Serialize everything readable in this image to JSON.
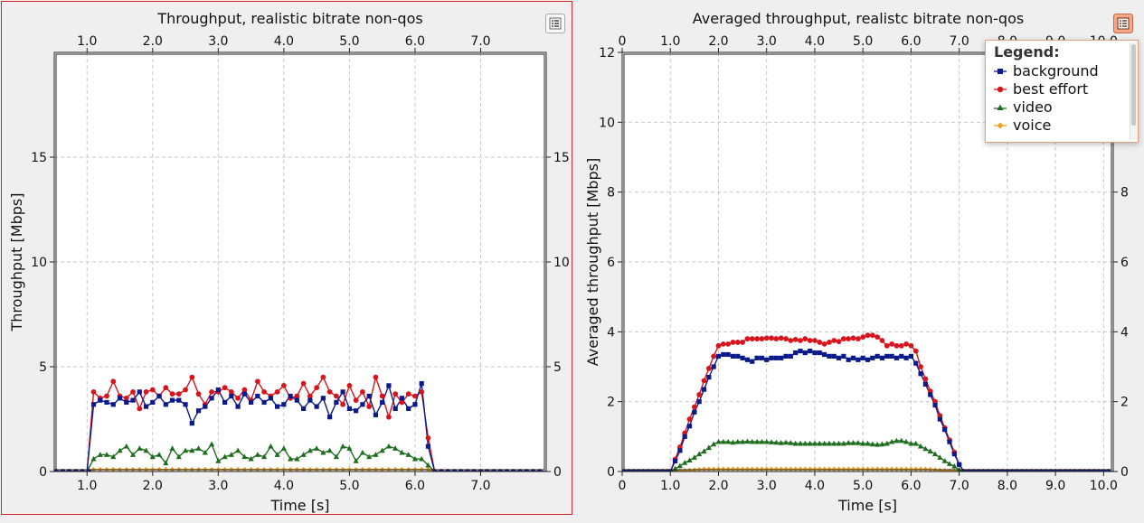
{
  "chart_data": [
    {
      "type": "line",
      "title": "Throughput, realistic bitrate non-qos",
      "xlabel": "Time [s]",
      "ylabel": "Throughput [Mbps]",
      "xlim": [
        0.5,
        8.0
      ],
      "ylim": [
        0,
        20
      ],
      "xticks": [
        1.0,
        2.0,
        3.0,
        4.0,
        5.0,
        6.0,
        7.0
      ],
      "xtick_labels": [
        "1.0",
        "2.0",
        "3.0",
        "4.0",
        "5.0",
        "6.0",
        "7.0"
      ],
      "yticks": [
        0,
        5,
        10,
        15
      ],
      "ytick_labels": [
        "0",
        "5",
        "10",
        "15"
      ],
      "top_axis": true,
      "right_axis": true,
      "grid": true,
      "legend": "hidden",
      "series": [
        {
          "name": "background",
          "color": "#0b1a8a",
          "marker": "square",
          "x": [
            1.1,
            1.2,
            1.3,
            1.4,
            1.5,
            1.6,
            1.7,
            1.8,
            1.9,
            2.0,
            2.1,
            2.2,
            2.3,
            2.4,
            2.5,
            2.6,
            2.7,
            2.8,
            2.9,
            3.0,
            3.1,
            3.2,
            3.3,
            3.4,
            3.5,
            3.6,
            3.7,
            3.8,
            3.9,
            4.0,
            4.1,
            4.2,
            4.3,
            4.4,
            4.5,
            4.6,
            4.7,
            4.8,
            4.9,
            5.0,
            5.1,
            5.2,
            5.3,
            5.4,
            5.5,
            5.6,
            5.7,
            5.8,
            5.9,
            6.0,
            6.1,
            6.2
          ],
          "y": [
            3.2,
            3.4,
            3.3,
            3.2,
            3.5,
            3.3,
            3.4,
            3.8,
            3.1,
            3.3,
            3.6,
            3.2,
            3.4,
            3.4,
            3.2,
            2.3,
            2.9,
            3.1,
            3.5,
            3.9,
            3.3,
            3.6,
            3.1,
            3.7,
            3.3,
            3.6,
            3.3,
            3.5,
            3.1,
            3.2,
            3.6,
            3.4,
            3.0,
            3.4,
            3.1,
            3.5,
            2.6,
            3.3,
            3.8,
            3.0,
            2.9,
            3.2,
            3.6,
            2.7,
            3.3,
            4.1,
            3.0,
            3.5,
            3.0,
            3.2,
            4.2,
            1.2
          ]
        },
        {
          "name": "best effort",
          "color": "#d8141c",
          "marker": "circle",
          "x": [
            1.1,
            1.2,
            1.3,
            1.4,
            1.5,
            1.6,
            1.7,
            1.8,
            1.9,
            2.0,
            2.1,
            2.2,
            2.3,
            2.4,
            2.5,
            2.6,
            2.7,
            2.8,
            2.9,
            3.0,
            3.1,
            3.2,
            3.3,
            3.4,
            3.5,
            3.6,
            3.7,
            3.8,
            3.9,
            4.0,
            4.1,
            4.2,
            4.3,
            4.4,
            4.5,
            4.6,
            4.7,
            4.8,
            4.9,
            5.0,
            5.1,
            5.2,
            5.3,
            5.4,
            5.5,
            5.6,
            5.7,
            5.8,
            5.9,
            6.0,
            6.1,
            6.2
          ],
          "y": [
            3.8,
            3.5,
            3.6,
            4.3,
            3.6,
            3.5,
            3.8,
            3.0,
            3.8,
            3.9,
            3.6,
            4.0,
            3.7,
            3.7,
            3.9,
            4.5,
            3.7,
            3.2,
            3.8,
            3.8,
            4.0,
            3.8,
            3.5,
            3.9,
            3.4,
            4.3,
            3.8,
            3.6,
            3.8,
            4.1,
            3.5,
            3.6,
            4.2,
            3.6,
            4.0,
            4.5,
            3.8,
            3.6,
            3.2,
            4.1,
            3.4,
            3.8,
            3.1,
            4.5,
            3.6,
            2.6,
            3.7,
            3.3,
            3.7,
            3.6,
            3.8,
            1.6
          ]
        },
        {
          "name": "video",
          "color": "#1e6e1e",
          "marker": "triangle",
          "x": [
            1.1,
            1.2,
            1.3,
            1.4,
            1.5,
            1.6,
            1.7,
            1.8,
            1.9,
            2.0,
            2.1,
            2.2,
            2.3,
            2.4,
            2.5,
            2.6,
            2.7,
            2.8,
            2.9,
            3.0,
            3.1,
            3.2,
            3.3,
            3.4,
            3.5,
            3.6,
            3.7,
            3.8,
            3.9,
            4.0,
            4.1,
            4.2,
            4.3,
            4.4,
            4.5,
            4.6,
            4.7,
            4.8,
            4.9,
            5.0,
            5.1,
            5.2,
            5.3,
            5.4,
            5.5,
            5.6,
            5.7,
            5.8,
            5.9,
            6.0,
            6.1,
            6.2
          ],
          "y": [
            0.6,
            0.8,
            0.8,
            0.7,
            1.0,
            1.2,
            0.8,
            1.1,
            1.0,
            0.7,
            0.8,
            0.4,
            1.1,
            0.7,
            1.0,
            1.0,
            1.1,
            0.9,
            1.3,
            0.5,
            0.7,
            0.8,
            1.0,
            0.7,
            0.6,
            0.8,
            0.7,
            1.2,
            0.8,
            1.1,
            0.6,
            0.6,
            0.8,
            1.0,
            1.1,
            0.9,
            1.0,
            0.7,
            1.2,
            1.1,
            0.5,
            0.9,
            0.7,
            0.8,
            1.0,
            1.2,
            1.1,
            0.9,
            0.8,
            0.6,
            0.6,
            0.3
          ]
        },
        {
          "name": "voice",
          "color": "#f0a020",
          "marker": "diamond",
          "x": [
            1.1,
            1.2,
            1.3,
            1.4,
            1.5,
            1.6,
            1.7,
            1.8,
            1.9,
            2.0,
            2.1,
            2.2,
            2.3,
            2.4,
            2.5,
            2.6,
            2.7,
            2.8,
            2.9,
            3.0,
            3.1,
            3.2,
            3.3,
            3.4,
            3.5,
            3.6,
            3.7,
            3.8,
            3.9,
            4.0,
            4.1,
            4.2,
            4.3,
            4.4,
            4.5,
            4.6,
            4.7,
            4.8,
            4.9,
            5.0,
            5.1,
            5.2,
            5.3,
            5.4,
            5.5,
            5.6,
            5.7,
            5.8,
            5.9,
            6.0,
            6.1,
            6.2
          ],
          "y": [
            0.1,
            0.1,
            0.1,
            0.1,
            0.1,
            0.1,
            0.1,
            0.1,
            0.1,
            0.1,
            0.1,
            0.1,
            0.1,
            0.1,
            0.1,
            0.1,
            0.1,
            0.1,
            0.1,
            0.1,
            0.1,
            0.1,
            0.1,
            0.1,
            0.1,
            0.1,
            0.1,
            0.1,
            0.1,
            0.1,
            0.1,
            0.1,
            0.1,
            0.1,
            0.1,
            0.1,
            0.1,
            0.1,
            0.1,
            0.1,
            0.1,
            0.1,
            0.1,
            0.1,
            0.1,
            0.1,
            0.1,
            0.1,
            0.1,
            0.1,
            0.1,
            0.1
          ]
        }
      ]
    },
    {
      "type": "line",
      "title": "Averaged throughput, realistc bitrate non-qos",
      "xlabel": "Time [s]",
      "ylabel": "Averaged throughput [Mbps]",
      "xlim": [
        0,
        10.2
      ],
      "ylim": [
        0,
        12
      ],
      "xticks": [
        0,
        1.0,
        2.0,
        3.0,
        4.0,
        5.0,
        6.0,
        7.0,
        8.0,
        9.0,
        10.0
      ],
      "xtick_labels": [
        "0",
        "1.0",
        "2.0",
        "3.0",
        "4.0",
        "5.0",
        "6.0",
        "7.0",
        "8.0",
        "9.0",
        "10.0"
      ],
      "yticks": [
        0,
        2,
        4,
        6,
        8,
        10,
        12
      ],
      "ytick_labels": [
        "0",
        "2",
        "4",
        "6",
        "8",
        "10",
        "12"
      ],
      "top_axis": true,
      "right_axis": true,
      "grid": true,
      "legend": "top-right",
      "series": [
        {
          "name": "background",
          "color": "#0b1a8a",
          "marker": "square",
          "x": [
            1.0,
            1.1,
            1.2,
            1.3,
            1.4,
            1.5,
            1.6,
            1.7,
            1.8,
            1.9,
            2.0,
            2.1,
            2.2,
            2.3,
            2.4,
            2.5,
            2.6,
            2.7,
            2.8,
            2.9,
            3.0,
            3.1,
            3.2,
            3.3,
            3.4,
            3.5,
            3.6,
            3.7,
            3.8,
            3.9,
            4.0,
            4.1,
            4.2,
            4.3,
            4.4,
            4.5,
            4.6,
            4.7,
            4.8,
            4.9,
            5.0,
            5.1,
            5.2,
            5.3,
            5.4,
            5.5,
            5.6,
            5.7,
            5.8,
            5.9,
            6.0,
            6.1,
            6.2,
            6.3,
            6.4,
            6.5,
            6.6,
            6.7,
            6.8,
            6.9,
            7.0,
            7.1
          ],
          "y": [
            0.0,
            0.3,
            0.6,
            1.0,
            1.3,
            1.7,
            2.0,
            2.35,
            2.7,
            3.0,
            3.3,
            3.35,
            3.35,
            3.3,
            3.3,
            3.25,
            3.2,
            3.15,
            3.25,
            3.25,
            3.2,
            3.25,
            3.25,
            3.25,
            3.3,
            3.3,
            3.4,
            3.45,
            3.4,
            3.45,
            3.4,
            3.4,
            3.35,
            3.3,
            3.3,
            3.25,
            3.3,
            3.2,
            3.25,
            3.2,
            3.25,
            3.2,
            3.25,
            3.3,
            3.25,
            3.3,
            3.3,
            3.25,
            3.3,
            3.25,
            3.3,
            3.1,
            2.8,
            2.5,
            2.2,
            1.9,
            1.5,
            1.2,
            0.85,
            0.5,
            0.2,
            0.0
          ]
        },
        {
          "name": "best effort",
          "color": "#d8141c",
          "marker": "circle",
          "x": [
            1.0,
            1.1,
            1.2,
            1.3,
            1.4,
            1.5,
            1.6,
            1.7,
            1.8,
            1.9,
            2.0,
            2.1,
            2.2,
            2.3,
            2.4,
            2.5,
            2.6,
            2.7,
            2.8,
            2.9,
            3.0,
            3.1,
            3.2,
            3.3,
            3.4,
            3.5,
            3.6,
            3.7,
            3.8,
            3.9,
            4.0,
            4.1,
            4.2,
            4.3,
            4.4,
            4.5,
            4.6,
            4.7,
            4.8,
            4.9,
            5.0,
            5.1,
            5.2,
            5.3,
            5.4,
            5.5,
            5.6,
            5.7,
            5.8,
            5.9,
            6.0,
            6.1,
            6.2,
            6.3,
            6.4,
            6.5,
            6.6,
            6.7,
            6.8,
            6.9,
            7.0,
            7.1
          ],
          "y": [
            0.0,
            0.35,
            0.7,
            1.1,
            1.5,
            1.85,
            2.2,
            2.6,
            2.95,
            3.3,
            3.6,
            3.65,
            3.65,
            3.7,
            3.7,
            3.7,
            3.8,
            3.8,
            3.8,
            3.8,
            3.82,
            3.82,
            3.8,
            3.82,
            3.8,
            3.75,
            3.78,
            3.75,
            3.8,
            3.75,
            3.75,
            3.7,
            3.65,
            3.7,
            3.75,
            3.72,
            3.8,
            3.8,
            3.82,
            3.8,
            3.85,
            3.9,
            3.9,
            3.85,
            3.75,
            3.6,
            3.65,
            3.6,
            3.6,
            3.65,
            3.6,
            3.45,
            3.0,
            2.65,
            2.3,
            2.0,
            1.6,
            1.25,
            0.9,
            0.55,
            0.2,
            0.0
          ]
        },
        {
          "name": "video",
          "color": "#1e6e1e",
          "marker": "triangle",
          "x": [
            1.0,
            1.1,
            1.2,
            1.3,
            1.4,
            1.5,
            1.6,
            1.7,
            1.8,
            1.9,
            2.0,
            2.1,
            2.2,
            2.3,
            2.4,
            2.5,
            2.6,
            2.7,
            2.8,
            2.9,
            3.0,
            3.1,
            3.2,
            3.3,
            3.4,
            3.5,
            3.6,
            3.7,
            3.8,
            3.9,
            4.0,
            4.1,
            4.2,
            4.3,
            4.4,
            4.5,
            4.6,
            4.7,
            4.8,
            4.9,
            5.0,
            5.1,
            5.2,
            5.3,
            5.4,
            5.5,
            5.6,
            5.7,
            5.8,
            5.9,
            6.0,
            6.1,
            6.2,
            6.3,
            6.4,
            6.5,
            6.6,
            6.7,
            6.8,
            6.9,
            7.0,
            7.1
          ],
          "y": [
            0.0,
            0.08,
            0.16,
            0.25,
            0.32,
            0.4,
            0.5,
            0.58,
            0.68,
            0.78,
            0.85,
            0.85,
            0.85,
            0.83,
            0.85,
            0.85,
            0.86,
            0.85,
            0.85,
            0.85,
            0.85,
            0.84,
            0.83,
            0.82,
            0.83,
            0.82,
            0.8,
            0.8,
            0.8,
            0.8,
            0.8,
            0.8,
            0.8,
            0.8,
            0.8,
            0.8,
            0.8,
            0.82,
            0.82,
            0.82,
            0.8,
            0.8,
            0.78,
            0.77,
            0.78,
            0.8,
            0.85,
            0.88,
            0.88,
            0.85,
            0.8,
            0.8,
            0.72,
            0.65,
            0.58,
            0.5,
            0.4,
            0.3,
            0.22,
            0.15,
            0.05,
            0.0
          ]
        },
        {
          "name": "voice",
          "color": "#f0a020",
          "marker": "diamond",
          "x": [
            1.0,
            1.1,
            1.2,
            1.3,
            1.4,
            1.5,
            1.6,
            1.7,
            1.8,
            1.9,
            2.0,
            2.1,
            2.2,
            2.3,
            2.4,
            2.5,
            2.6,
            2.7,
            2.8,
            2.9,
            3.0,
            3.1,
            3.2,
            3.3,
            3.4,
            3.5,
            3.6,
            3.7,
            3.8,
            3.9,
            4.0,
            4.1,
            4.2,
            4.3,
            4.4,
            4.5,
            4.6,
            4.7,
            4.8,
            4.9,
            5.0,
            5.1,
            5.2,
            5.3,
            5.4,
            5.5,
            5.6,
            5.7,
            5.8,
            5.9,
            6.0,
            6.1,
            6.2,
            6.3,
            6.4,
            6.5,
            6.6,
            6.7,
            6.8,
            6.9,
            7.0,
            7.1
          ],
          "y": [
            0.0,
            0.01,
            0.02,
            0.03,
            0.04,
            0.05,
            0.06,
            0.07,
            0.07,
            0.07,
            0.07,
            0.07,
            0.07,
            0.07,
            0.07,
            0.07,
            0.07,
            0.07,
            0.07,
            0.07,
            0.07,
            0.07,
            0.07,
            0.07,
            0.07,
            0.07,
            0.07,
            0.07,
            0.07,
            0.07,
            0.07,
            0.07,
            0.07,
            0.07,
            0.07,
            0.07,
            0.07,
            0.07,
            0.07,
            0.07,
            0.07,
            0.07,
            0.07,
            0.07,
            0.07,
            0.07,
            0.07,
            0.07,
            0.07,
            0.07,
            0.07,
            0.07,
            0.07,
            0.07,
            0.06,
            0.05,
            0.04,
            0.03,
            0.02,
            0.02,
            0.01,
            0.0
          ]
        }
      ]
    }
  ],
  "legend": {
    "title": "Legend:",
    "items": [
      "background",
      "best effort",
      "video",
      "voice"
    ]
  },
  "icons": {
    "legend_toggle": "legend-list-icon"
  }
}
